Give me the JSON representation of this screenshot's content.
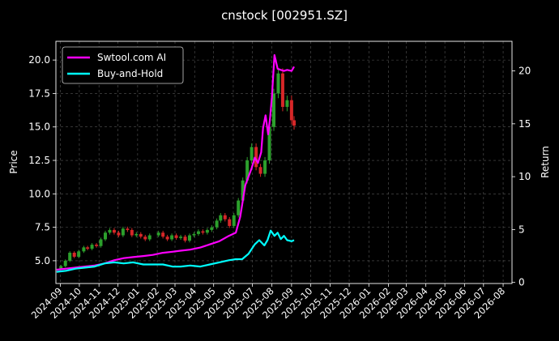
{
  "chart_data": {
    "type": "line",
    "title": "cnstock [002951.SZ]",
    "xlabel": "",
    "ylabel_left": "Price",
    "ylabel_right": "Return",
    "grid": true,
    "legend_position": "top-left",
    "ylim_left": [
      3.3,
      21.4
    ],
    "ylim_right": [
      -0.1,
      22.8
    ],
    "xlim": [
      "2024-08-25",
      "2026-08-15"
    ],
    "y_ticks_left": [
      5.0,
      7.5,
      10.0,
      12.5,
      15.0,
      17.5,
      20.0
    ],
    "y_tick_labels_left": [
      "5.0",
      "7.5",
      "10.0",
      "12.5",
      "15.0",
      "17.5",
      "20.0"
    ],
    "y_ticks_right": [
      0,
      5,
      10,
      15,
      20
    ],
    "y_tick_labels_right": [
      "0",
      "5",
      "10",
      "15",
      "20"
    ],
    "x_ticks": [
      "2024-09-01",
      "2024-10-01",
      "2024-11-01",
      "2024-12-01",
      "2025-01-01",
      "2025-02-01",
      "2025-03-01",
      "2025-04-01",
      "2025-05-01",
      "2025-06-01",
      "2025-07-01",
      "2025-08-01",
      "2025-09-01",
      "2025-10-01",
      "2025-11-01",
      "2025-12-01",
      "2026-01-01",
      "2026-02-01",
      "2026-03-01",
      "2026-04-01",
      "2026-05-01",
      "2026-06-01",
      "2026-07-01",
      "2026-08-01"
    ],
    "x_tick_labels": [
      "2024-09",
      "2024-10",
      "2024-11",
      "2024-12",
      "2025-01",
      "2025-02",
      "2025-03",
      "2025-04",
      "2025-05",
      "2025-06",
      "2025-07",
      "2025-08",
      "2025-09",
      "2025-10",
      "2025-11",
      "2025-12",
      "2026-01",
      "2026-02",
      "2026-03",
      "2026-04",
      "2026-05",
      "2026-06",
      "2026-07",
      "2026-08"
    ],
    "price": {
      "up_color": "#2ca02c",
      "down_color": "#d62728",
      "dates": [
        "2024-08-26",
        "2024-09-02",
        "2024-09-09",
        "2024-09-16",
        "2024-09-23",
        "2024-09-30",
        "2024-10-08",
        "2024-10-14",
        "2024-10-21",
        "2024-10-28",
        "2024-11-04",
        "2024-11-11",
        "2024-11-18",
        "2024-11-25",
        "2024-12-02",
        "2024-12-09",
        "2024-12-16",
        "2024-12-23",
        "2024-12-30",
        "2025-01-06",
        "2025-01-13",
        "2025-01-20",
        "2025-02-03",
        "2025-02-10",
        "2025-02-17",
        "2025-02-24",
        "2025-03-03",
        "2025-03-10",
        "2025-03-17",
        "2025-03-24",
        "2025-03-31",
        "2025-04-07",
        "2025-04-14",
        "2025-04-21",
        "2025-04-28",
        "2025-05-06",
        "2025-05-12",
        "2025-05-19",
        "2025-05-26",
        "2025-06-02",
        "2025-06-09",
        "2025-06-16",
        "2025-06-23",
        "2025-06-30",
        "2025-07-07",
        "2025-07-14",
        "2025-07-21",
        "2025-07-28",
        "2025-08-04",
        "2025-08-11",
        "2025-08-18",
        "2025-08-25",
        "2025-09-01",
        "2025-09-05"
      ],
      "close": [
        4.4,
        4.6,
        5.0,
        5.6,
        5.3,
        5.7,
        6.0,
        5.9,
        6.2,
        6.1,
        6.6,
        7.1,
        7.3,
        7.1,
        6.9,
        7.4,
        7.3,
        6.9,
        7.0,
        6.8,
        6.6,
        6.9,
        7.1,
        6.8,
        6.6,
        6.9,
        6.7,
        6.8,
        6.5,
        6.9,
        7.0,
        7.2,
        7.1,
        7.3,
        7.5,
        8.0,
        8.4,
        8.1,
        7.6,
        8.4,
        9.5,
        11.0,
        12.5,
        13.5,
        12.0,
        11.5,
        12.5,
        15.0,
        17.5,
        19.0,
        16.5,
        17.0,
        15.5,
        15.1
      ]
    },
    "series": [
      {
        "name": "Swtool.com AI",
        "color": "#ff00ff",
        "axis": "right",
        "dates": [
          "2024-08-26",
          "2024-09-10",
          "2024-09-25",
          "2024-10-10",
          "2024-10-25",
          "2024-11-10",
          "2024-11-25",
          "2024-12-10",
          "2024-12-25",
          "2025-01-10",
          "2025-01-25",
          "2025-02-10",
          "2025-02-25",
          "2025-03-10",
          "2025-03-25",
          "2025-04-10",
          "2025-04-25",
          "2025-05-10",
          "2025-05-25",
          "2025-06-05",
          "2025-06-12",
          "2025-06-20",
          "2025-06-30",
          "2025-07-05",
          "2025-07-10",
          "2025-07-15",
          "2025-07-18",
          "2025-07-22",
          "2025-07-26",
          "2025-07-29",
          "2025-08-01",
          "2025-08-05",
          "2025-08-10",
          "2025-08-15",
          "2025-08-20",
          "2025-08-25",
          "2025-09-01",
          "2025-09-05"
        ],
        "values": [
          1.2,
          1.3,
          1.4,
          1.5,
          1.6,
          1.8,
          2.1,
          2.3,
          2.4,
          2.5,
          2.6,
          2.8,
          2.9,
          3.0,
          3.1,
          3.3,
          3.6,
          3.9,
          4.4,
          4.7,
          6.2,
          9.2,
          10.8,
          11.8,
          11.3,
          12.3,
          14.6,
          15.8,
          14.0,
          15.5,
          17.5,
          21.5,
          20.2,
          20.1,
          20.0,
          20.1,
          20.0,
          20.4
        ]
      },
      {
        "name": "Buy-and-Hold",
        "color": "#00ffff",
        "axis": "right",
        "dates": [
          "2024-08-26",
          "2024-09-10",
          "2024-09-25",
          "2024-10-10",
          "2024-10-25",
          "2024-11-10",
          "2024-11-25",
          "2024-12-10",
          "2024-12-25",
          "2025-01-10",
          "2025-01-25",
          "2025-02-10",
          "2025-02-25",
          "2025-03-10",
          "2025-03-25",
          "2025-04-10",
          "2025-04-25",
          "2025-05-10",
          "2025-05-25",
          "2025-06-05",
          "2025-06-15",
          "2025-06-25",
          "2025-07-05",
          "2025-07-12",
          "2025-07-20",
          "2025-07-25",
          "2025-07-30",
          "2025-08-05",
          "2025-08-10",
          "2025-08-15",
          "2025-08-20",
          "2025-08-25",
          "2025-09-01",
          "2025-09-05"
        ],
        "values": [
          1.0,
          1.1,
          1.3,
          1.4,
          1.5,
          1.8,
          1.9,
          1.8,
          1.9,
          1.7,
          1.7,
          1.7,
          1.5,
          1.5,
          1.6,
          1.5,
          1.7,
          1.9,
          2.1,
          2.2,
          2.2,
          2.7,
          3.6,
          4.0,
          3.5,
          4.0,
          4.9,
          4.4,
          4.7,
          4.1,
          4.4,
          4.0,
          3.9,
          4.0
        ]
      }
    ]
  }
}
